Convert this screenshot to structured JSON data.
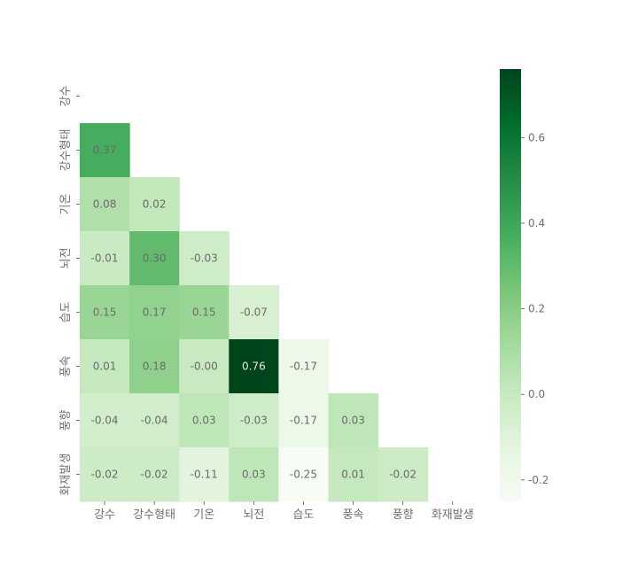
{
  "chart_data": {
    "type": "heatmap",
    "title": "",
    "xlabel": "",
    "ylabel": "",
    "mask": "upper-triangle",
    "categories": [
      "강수",
      "강수형태",
      "기온",
      "뇌전",
      "습도",
      "풍속",
      "풍향",
      "화재발생"
    ],
    "matrix": [
      [
        null,
        null,
        null,
        null,
        null,
        null,
        null,
        null
      ],
      [
        0.37,
        null,
        null,
        null,
        null,
        null,
        null,
        null
      ],
      [
        0.08,
        0.02,
        null,
        null,
        null,
        null,
        null,
        null
      ],
      [
        -0.01,
        0.3,
        -0.03,
        null,
        null,
        null,
        null,
        null
      ],
      [
        0.15,
        0.17,
        0.15,
        -0.07,
        null,
        null,
        null,
        null
      ],
      [
        0.01,
        0.18,
        -0.0,
        0.76,
        -0.17,
        null,
        null,
        null
      ],
      [
        -0.04,
        -0.04,
        0.03,
        -0.03,
        -0.17,
        0.03,
        null,
        null
      ],
      [
        -0.02,
        -0.02,
        -0.11,
        0.03,
        -0.25,
        0.01,
        -0.02,
        null
      ]
    ],
    "cell_labels": [
      [
        null,
        null,
        null,
        null,
        null,
        null,
        null,
        null
      ],
      [
        "0.37",
        null,
        null,
        null,
        null,
        null,
        null,
        null
      ],
      [
        "0.08",
        "0.02",
        null,
        null,
        null,
        null,
        null,
        null
      ],
      [
        "-0.01",
        "0.30",
        "-0.03",
        null,
        null,
        null,
        null,
        null
      ],
      [
        "0.15",
        "0.17",
        "0.15",
        "-0.07",
        null,
        null,
        null,
        null
      ],
      [
        "0.01",
        "0.18",
        "-0.00",
        "0.76",
        "-0.17",
        null,
        null,
        null
      ],
      [
        "-0.04",
        "-0.04",
        "0.03",
        "-0.03",
        "-0.17",
        "0.03",
        null,
        null
      ],
      [
        "-0.02",
        "-0.02",
        "-0.11",
        "0.03",
        "-0.25",
        "0.01",
        "-0.02",
        null
      ]
    ],
    "colormap": "Greens",
    "vmin": -0.25,
    "vmax": 0.76,
    "colorbar": {
      "ticks": [
        -0.2,
        0.0,
        0.2,
        0.4,
        0.6
      ],
      "tick_labels": [
        "-0.2",
        "0.0",
        "0.2",
        "0.4",
        "0.6"
      ],
      "placement": "right"
    },
    "grid": false,
    "legend": "none"
  }
}
